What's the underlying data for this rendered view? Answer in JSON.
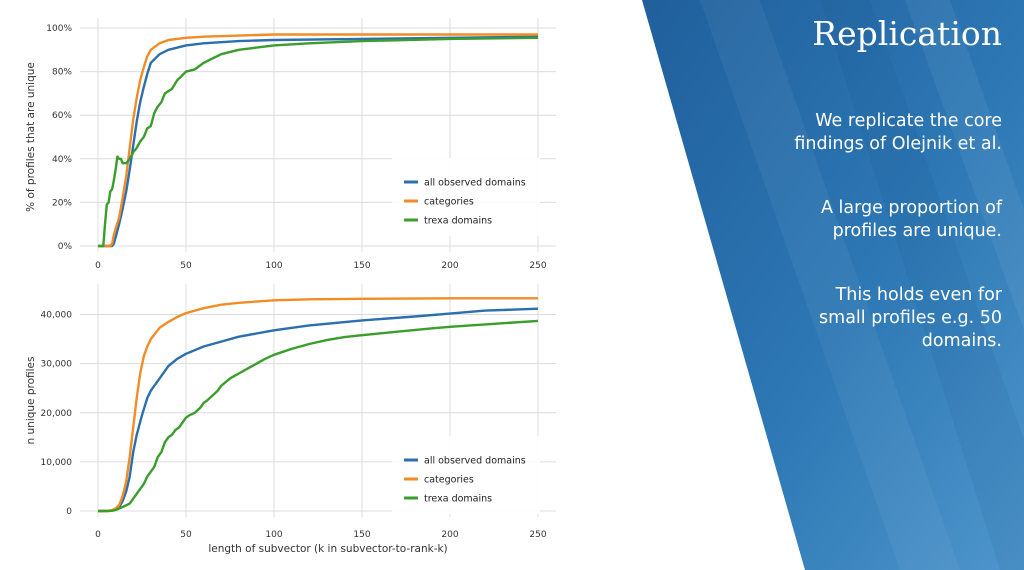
{
  "slide": {
    "title": "Replication",
    "bullets": [
      "We replicate the core findings of Olejnik et al.",
      "A large proportion of profiles are unique.",
      "This holds even for small profiles e.g. 50 domains."
    ],
    "colors": {
      "panel_dark": "#1f5f9c",
      "panel_mid": "#2d78b5",
      "panel_light": "#4e96cc"
    }
  },
  "chart_data": [
    {
      "type": "line",
      "ylabel": "% of profiles that are unique",
      "xlabel": "",
      "xlim": [
        0,
        250
      ],
      "ylim": [
        0,
        100
      ],
      "xticks": [
        0,
        50,
        100,
        150,
        200,
        250
      ],
      "yticks": [
        0,
        20,
        40,
        60,
        80,
        100
      ],
      "ytick_labels": [
        "0%",
        "20%",
        "40%",
        "60%",
        "80%",
        "100%"
      ],
      "grid": true,
      "legend_position": "bottom-right",
      "series": [
        {
          "name": "all observed domains",
          "color": "#2c6fad",
          "x": [
            0,
            5,
            7,
            8,
            9,
            10,
            12,
            14,
            16,
            18,
            20,
            22,
            24,
            26,
            28,
            30,
            35,
            40,
            50,
            60,
            80,
            100,
            150,
            200,
            250
          ],
          "y": [
            0,
            0,
            0,
            0,
            1,
            4,
            10,
            17,
            25,
            35,
            46,
            57,
            66,
            73,
            79,
            84,
            88,
            90,
            92,
            93,
            94,
            94.5,
            95,
            95.5,
            96
          ]
        },
        {
          "name": "categories",
          "color": "#f28c28",
          "x": [
            0,
            5,
            7,
            8,
            9,
            10,
            12,
            14,
            16,
            18,
            20,
            22,
            24,
            26,
            28,
            30,
            35,
            40,
            50,
            60,
            80,
            100,
            150,
            200,
            250
          ],
          "y": [
            0,
            0,
            0,
            1,
            5,
            8,
            13,
            22,
            32,
            45,
            58,
            68,
            76,
            82,
            87,
            90,
            93,
            94.5,
            95.5,
            96,
            96.5,
            97,
            97,
            97,
            97
          ]
        },
        {
          "name": "trexa domains",
          "color": "#3a9d2c",
          "x": [
            0,
            3,
            4,
            5,
            6,
            7,
            8,
            9,
            10,
            11,
            12,
            13,
            14,
            16,
            18,
            20,
            22,
            24,
            26,
            28,
            30,
            32,
            34,
            36,
            38,
            40,
            42,
            45,
            50,
            55,
            60,
            65,
            70,
            80,
            90,
            100,
            120,
            150,
            200,
            250
          ],
          "y": [
            0,
            0,
            10,
            19,
            20,
            25,
            26,
            30,
            35,
            41,
            40,
            40,
            38,
            38,
            40,
            43,
            45,
            48,
            50,
            54,
            55,
            61,
            64,
            66,
            70,
            71,
            72,
            76,
            80,
            81,
            84,
            86,
            88,
            90,
            91,
            92,
            93,
            94,
            95,
            95.5
          ]
        }
      ]
    },
    {
      "type": "line",
      "ylabel": "n unique profiles",
      "xlabel": "length of subvector (k in subvector-to-rank-k)",
      "xlim": [
        0,
        250
      ],
      "ylim": [
        0,
        45000
      ],
      "xticks": [
        0,
        50,
        100,
        150,
        200,
        250
      ],
      "yticks": [
        0,
        10000,
        20000,
        30000,
        40000
      ],
      "ytick_labels": [
        "0",
        "10,000",
        "20,000",
        "30,000",
        "40,000"
      ],
      "grid": true,
      "legend_position": "bottom-right",
      "series": [
        {
          "name": "all observed domains",
          "color": "#2c6fad",
          "x": [
            0,
            5,
            8,
            10,
            12,
            14,
            16,
            18,
            20,
            22,
            25,
            28,
            30,
            35,
            40,
            45,
            50,
            60,
            70,
            80,
            100,
            120,
            150,
            180,
            200,
            220,
            250
          ],
          "y": [
            0,
            0,
            100,
            300,
            800,
            2000,
            4000,
            7000,
            12000,
            15500,
            19500,
            23000,
            24500,
            27000,
            29500,
            31000,
            32000,
            33500,
            34500,
            35500,
            36800,
            37800,
            38800,
            39600,
            40200,
            40800,
            41200
          ]
        },
        {
          "name": "categories",
          "color": "#f28c28",
          "x": [
            0,
            5,
            8,
            10,
            12,
            14,
            16,
            18,
            20,
            22,
            24,
            26,
            28,
            30,
            35,
            40,
            45,
            50,
            60,
            70,
            80,
            100,
            120,
            150,
            200,
            250
          ],
          "y": [
            0,
            0,
            200,
            500,
            1200,
            3000,
            6000,
            11000,
            17000,
            23000,
            28000,
            31500,
            33500,
            35000,
            37300,
            38500,
            39500,
            40300,
            41300,
            42000,
            42400,
            42900,
            43100,
            43200,
            43300,
            43300
          ]
        },
        {
          "name": "trexa domains",
          "color": "#3a9d2c",
          "x": [
            0,
            5,
            8,
            10,
            12,
            15,
            18,
            20,
            22,
            24,
            26,
            28,
            30,
            32,
            34,
            36,
            38,
            40,
            42,
            44,
            46,
            48,
            50,
            52,
            55,
            58,
            60,
            62,
            65,
            68,
            70,
            75,
            80,
            85,
            90,
            95,
            100,
            110,
            120,
            130,
            140,
            150,
            170,
            190,
            200,
            220,
            250
          ],
          "y": [
            0,
            0,
            50,
            200,
            500,
            1000,
            1500,
            2500,
            3500,
            4500,
            5500,
            7000,
            8000,
            9000,
            11000,
            12000,
            14000,
            15000,
            15500,
            16500,
            17000,
            18000,
            19000,
            19500,
            20000,
            21000,
            22000,
            22500,
            23500,
            24500,
            25500,
            27000,
            28000,
            29000,
            30000,
            31000,
            31800,
            33000,
            34000,
            34800,
            35400,
            35800,
            36500,
            37200,
            37500,
            38000,
            38700
          ]
        }
      ]
    }
  ]
}
